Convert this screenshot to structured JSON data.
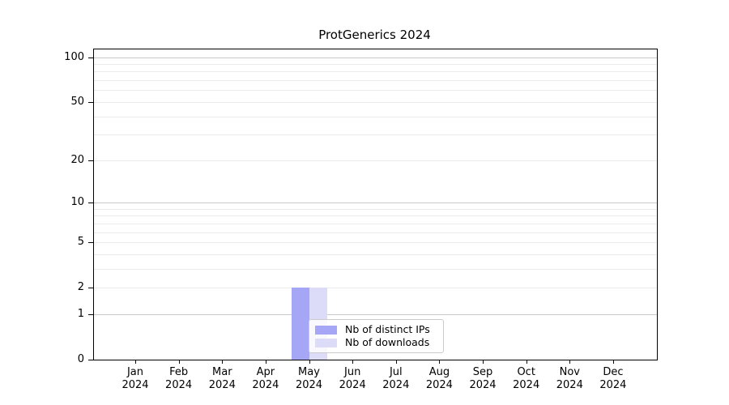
{
  "chart_data": {
    "type": "bar",
    "title": "ProtGenerics 2024",
    "x_categories": [
      "Jan",
      "Feb",
      "Mar",
      "Apr",
      "May",
      "Jun",
      "Jul",
      "Aug",
      "Sep",
      "Oct",
      "Nov",
      "Dec"
    ],
    "x_year_line": "2024",
    "series": [
      {
        "key": "distinct-ips",
        "name": "Nb of distinct IPs",
        "color": "#a6a6f6",
        "values": [
          0,
          0,
          0,
          0,
          2,
          0,
          0,
          0,
          0,
          0,
          0,
          0
        ]
      },
      {
        "key": "downloads",
        "name": "Nb of downloads",
        "color": "#dcdcf9",
        "values": [
          0,
          0,
          0,
          0,
          2,
          0,
          0,
          0,
          0,
          0,
          0,
          0
        ]
      }
    ],
    "y_scale": "log1p",
    "y_tick_values": [
      0,
      1,
      2,
      5,
      10,
      20,
      50,
      100
    ],
    "y_tick_labels": [
      "0",
      "1",
      "2",
      "5",
      "10",
      "20",
      "50",
      "100"
    ],
    "grid_major_values": [
      1,
      10,
      100
    ],
    "grid_minor_values": [
      2,
      3,
      4,
      5,
      6,
      7,
      8,
      9,
      20,
      30,
      40,
      50,
      60,
      70,
      80,
      90
    ],
    "ylim": [
      0,
      113
    ],
    "grid": "horizontal",
    "legend_position": "inside-bottom-center"
  },
  "colors": {
    "axis": "#000000",
    "grid_major": "#c9c9c9",
    "grid_minor": "#ebebeb",
    "legend_border": "#cccccc"
  }
}
